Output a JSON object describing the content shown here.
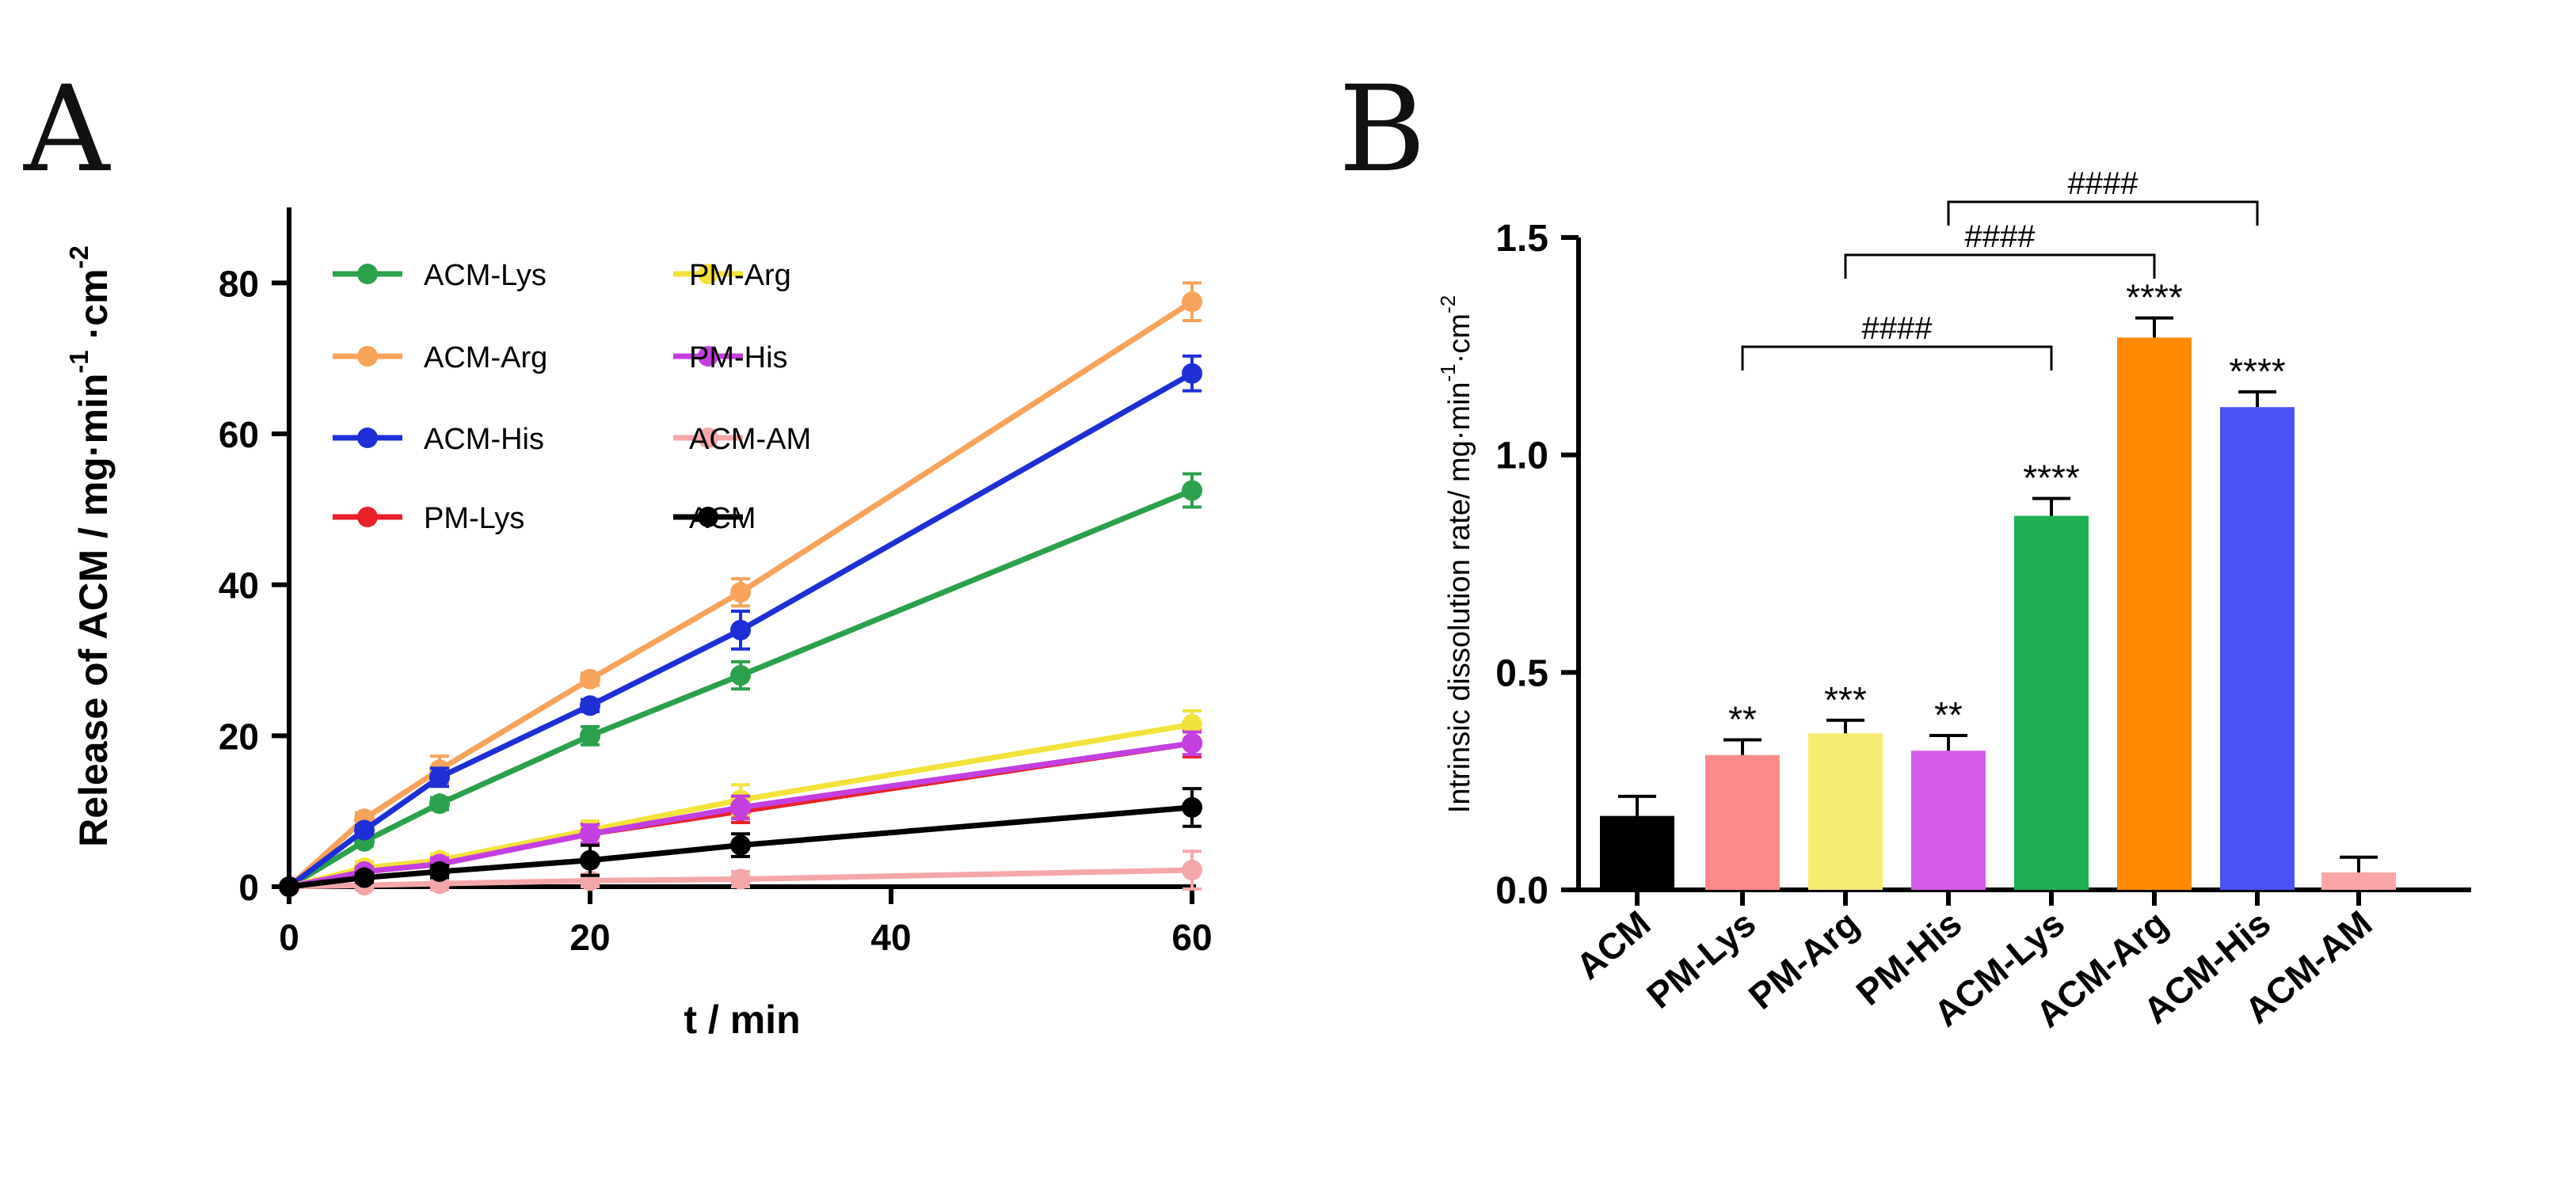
{
  "panels": {
    "a": "A",
    "b": "B"
  },
  "chart_data": [
    {
      "type": "line",
      "xlabel": "t / min",
      "ylabel": "Release of ACM / mg·min",
      "ylabel_sup1": "-1",
      "ylabel_mid": " ·cm",
      "ylabel_sup2": "-2",
      "x": [
        0,
        5,
        10,
        20,
        30,
        60
      ],
      "xlim": [
        0,
        60
      ],
      "ylim": [
        0,
        90
      ],
      "xticks": [
        "0",
        "20",
        "40",
        "60"
      ],
      "yticks": [
        "0",
        "20",
        "40",
        "60",
        "80"
      ],
      "grid": false,
      "legend": "top-left",
      "series": [
        {
          "name": "ACM-Lys",
          "color": "#2ca04c",
          "values": [
            0,
            6,
            11,
            20,
            28,
            52.5
          ],
          "err": [
            0,
            0.6,
            0.8,
            1.2,
            1.8,
            2.2
          ]
        },
        {
          "name": "ACM-Arg",
          "color": "#f7a35c",
          "values": [
            0,
            9,
            15.5,
            27.5,
            39,
            77.5
          ],
          "err": [
            0,
            0.8,
            1.8,
            0.8,
            1.8,
            2.5
          ]
        },
        {
          "name": "ACM-His",
          "color": "#1f2fd6",
          "values": [
            0,
            7.5,
            14.5,
            24,
            34,
            68
          ],
          "err": [
            0,
            0.6,
            1.2,
            0.8,
            2.5,
            2.3
          ]
        },
        {
          "name": "PM-Lys",
          "color": "#e8212a",
          "values": [
            0,
            2,
            3,
            7,
            10,
            19
          ],
          "err": [
            0,
            0.8,
            0.8,
            1.5,
            1.5,
            1.8
          ]
        },
        {
          "name": "PM-Arg",
          "color": "#f2e23c",
          "values": [
            0,
            2.5,
            3.5,
            7.5,
            11.5,
            21.5
          ],
          "err": [
            0,
            0.8,
            0.8,
            1.2,
            2,
            1.8
          ]
        },
        {
          "name": "PM-His",
          "color": "#c33fe0",
          "values": [
            0,
            2,
            3,
            7,
            10.5,
            19
          ],
          "err": [
            0,
            0.6,
            0.8,
            1.2,
            1.5,
            1.5
          ]
        },
        {
          "name": "ACM-AM",
          "color": "#f4a7a9",
          "values": [
            0,
            0.2,
            0.4,
            0.8,
            1,
            2.2
          ],
          "err": [
            0,
            0.6,
            0.8,
            0.8,
            1,
            2.5
          ]
        },
        {
          "name": "ACM",
          "color": "#000000",
          "values": [
            0,
            1.2,
            2,
            3.5,
            5.5,
            10.5
          ],
          "err": [
            0,
            0.6,
            0.8,
            2,
            1.5,
            2.5
          ]
        }
      ]
    },
    {
      "type": "bar",
      "ylabel": "Intrinsic dissolution rate/ mg·min",
      "ylabel_sup1": "-1",
      "ylabel_mid": "·cm",
      "ylabel_sup2": "-2",
      "ylim": [
        0,
        1.5
      ],
      "yticks": [
        "0.0",
        "0.5",
        "1.0",
        "1.5"
      ],
      "categories": [
        "ACM",
        "PM-Lys",
        "PM-Arg",
        "PM-His",
        "ACM-Lys",
        "ACM-Arg",
        "ACM-His",
        "ACM-AM"
      ],
      "values": [
        0.17,
        0.31,
        0.36,
        0.32,
        0.86,
        1.27,
        1.11,
        0.04
      ],
      "errors": [
        0.045,
        0.035,
        0.03,
        0.035,
        0.04,
        0.045,
        0.035,
        0.035
      ],
      "colors": [
        "#000000",
        "#fb8a89",
        "#f7ec73",
        "#d55ce8",
        "#1fb055",
        "#ff8a00",
        "#4b52f5",
        "#fba6a6"
      ],
      "significance": [
        "",
        "**",
        "***",
        "**",
        "****",
        "****",
        "****",
        ""
      ],
      "comparisons": [
        {
          "from": 1,
          "to": 4,
          "label": "####"
        },
        {
          "from": 2,
          "to": 5,
          "label": "####"
        },
        {
          "from": 3,
          "to": 6,
          "label": "####"
        }
      ]
    }
  ]
}
